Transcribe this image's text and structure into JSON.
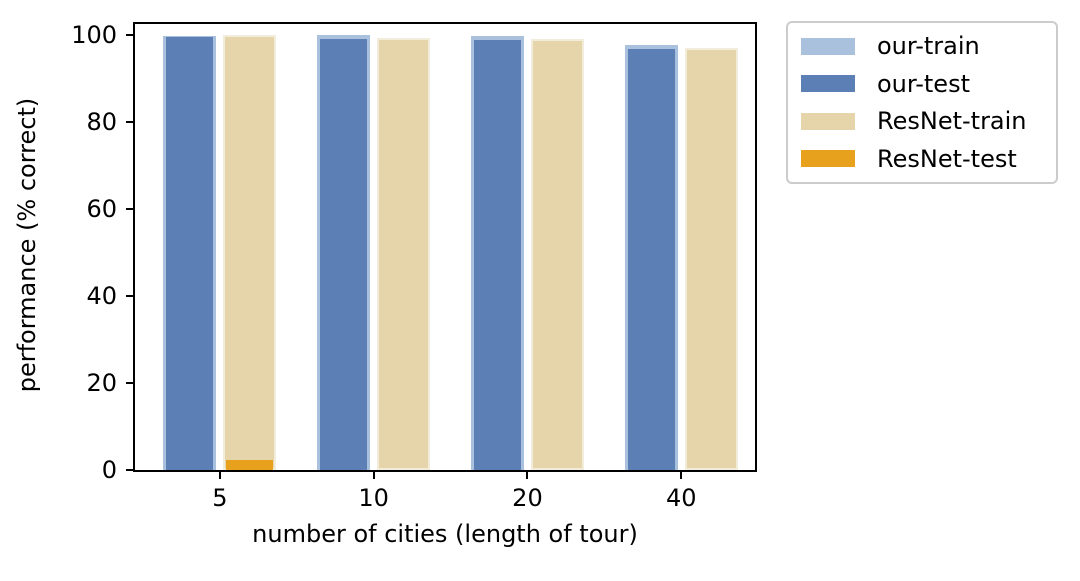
{
  "chart_data": {
    "type": "bar",
    "title": "",
    "xlabel": "number of cities (length of tour)",
    "ylabel": "performance (% correct)",
    "categories": [
      "5",
      "10",
      "20",
      "40"
    ],
    "series": [
      {
        "name": "our-train",
        "group": "our",
        "role": "train",
        "color": "#a9c1dd",
        "values": [
          99.8,
          100.0,
          99.7,
          97.6
        ]
      },
      {
        "name": "our-test",
        "group": "our",
        "role": "test",
        "color": "#5c80b6",
        "values": [
          99.5,
          99.1,
          98.9,
          96.7
        ]
      },
      {
        "name": "ResNet-train",
        "group": "ResNet",
        "role": "train",
        "color": "#e6d5aa",
        "edge_color": "#f2ecda",
        "values": [
          100.0,
          99.2,
          99.1,
          97.0
        ]
      },
      {
        "name": "ResNet-test",
        "group": "ResNet",
        "role": "test",
        "color": "#e7a11d",
        "values": [
          2.3,
          0,
          0,
          0
        ]
      }
    ],
    "yticks": [
      0,
      20,
      40,
      60,
      80,
      100
    ],
    "ylim": [
      0,
      102.5
    ],
    "grid": false,
    "legend_position": "outside-upper-right",
    "colors": {
      "spine": "#000000",
      "text": "#000000",
      "legend_border": "#cccccc",
      "background": "#ffffff"
    }
  }
}
